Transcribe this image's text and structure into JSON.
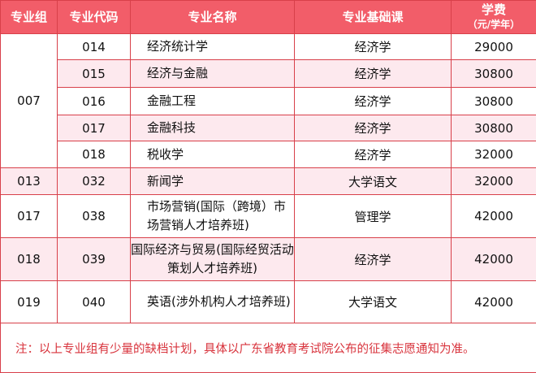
{
  "headers": {
    "group": "专业组",
    "code": "专业代码",
    "name": "专业名称",
    "course": "专业基础课",
    "fee": "学费",
    "fee_unit": "（元/学年）"
  },
  "rows": [
    {
      "group": "007",
      "code": "014",
      "name": "经济统计学",
      "course": "经济学",
      "fee": "29000"
    },
    {
      "code": "015",
      "name": "经济与金融",
      "course": "经济学",
      "fee": "30800"
    },
    {
      "code": "016",
      "name": "金融工程",
      "course": "经济学",
      "fee": "30800"
    },
    {
      "code": "017",
      "name": "金融科技",
      "course": "经济学",
      "fee": "30800"
    },
    {
      "code": "018",
      "name": "税收学",
      "course": "经济学",
      "fee": "32000"
    },
    {
      "group": "013",
      "code": "032",
      "name": "新闻学",
      "course": "大学语文",
      "fee": "32000"
    },
    {
      "group": "017",
      "code": "038",
      "name": "市场营销(国际（跨境）市场营销人才培养班)",
      "course": "管理学",
      "fee": "42000"
    },
    {
      "group": "018",
      "code": "039",
      "name": "国际经济与贸易(国际经贸活动策划人才培养班)",
      "course": "经济学",
      "fee": "42000"
    },
    {
      "group": "019",
      "code": "040",
      "name": "英语(涉外机构人才培养班)",
      "course": "大学语文",
      "fee": "42000"
    }
  ],
  "note": "注：以上专业组有少量的缺档计划，具体以广东省教育考试院公布的征集志愿通知为准。",
  "colors": {
    "header": "#f25d69",
    "border": "#d8404a",
    "stripe": "#fde9ee",
    "note": "#d8333c"
  }
}
